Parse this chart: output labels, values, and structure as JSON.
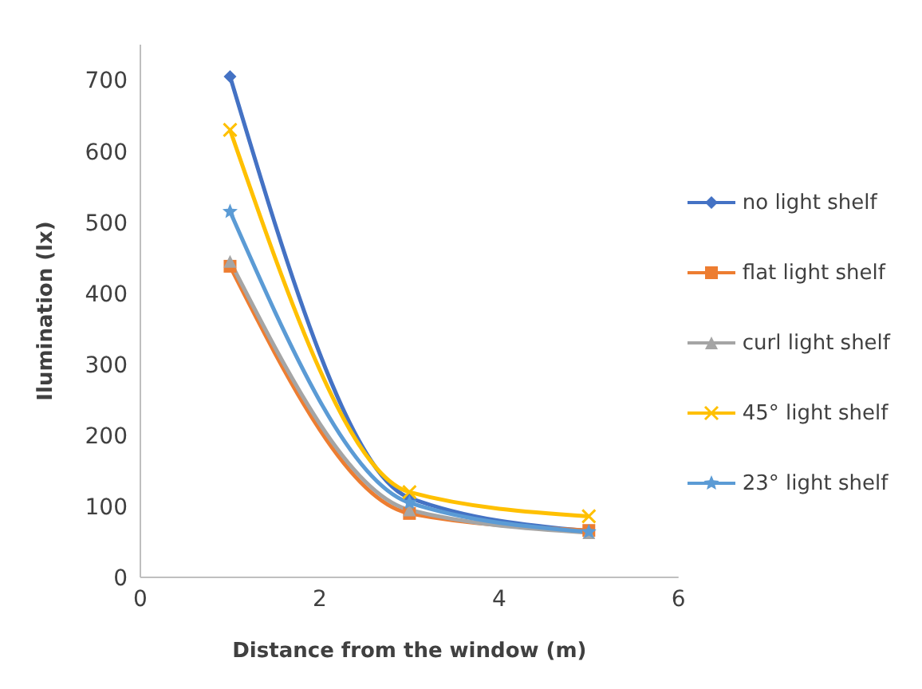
{
  "chart_data": {
    "type": "line",
    "xlabel": "Distance from the window (m)",
    "ylabel": "Ilumination  (lx)",
    "x": [
      1,
      3,
      5
    ],
    "xlim": [
      0,
      6
    ],
    "xticks": [
      0,
      2,
      4,
      6
    ],
    "ylim": [
      0,
      750
    ],
    "yticks": [
      0,
      100,
      200,
      300,
      400,
      500,
      600,
      700
    ],
    "grid": false,
    "legend": "right",
    "series": [
      {
        "name": "no light shelf",
        "color": "#4472c4",
        "marker": "diamond",
        "values": [
          705,
          112,
          65
        ]
      },
      {
        "name": "flat light shelf",
        "color": "#ed7d31",
        "marker": "square",
        "values": [
          438,
          90,
          66
        ]
      },
      {
        "name": "curl light shelf",
        "color": "#a5a5a5",
        "marker": "triangle",
        "values": [
          445,
          95,
          63
        ]
      },
      {
        "name": "45° light shelf",
        "color": "#ffc000",
        "marker": "cross",
        "values": [
          630,
          120,
          86
        ]
      },
      {
        "name": "23° light shelf",
        "color": "#5b9bd5",
        "marker": "star",
        "values": [
          515,
          105,
          64
        ]
      }
    ]
  }
}
